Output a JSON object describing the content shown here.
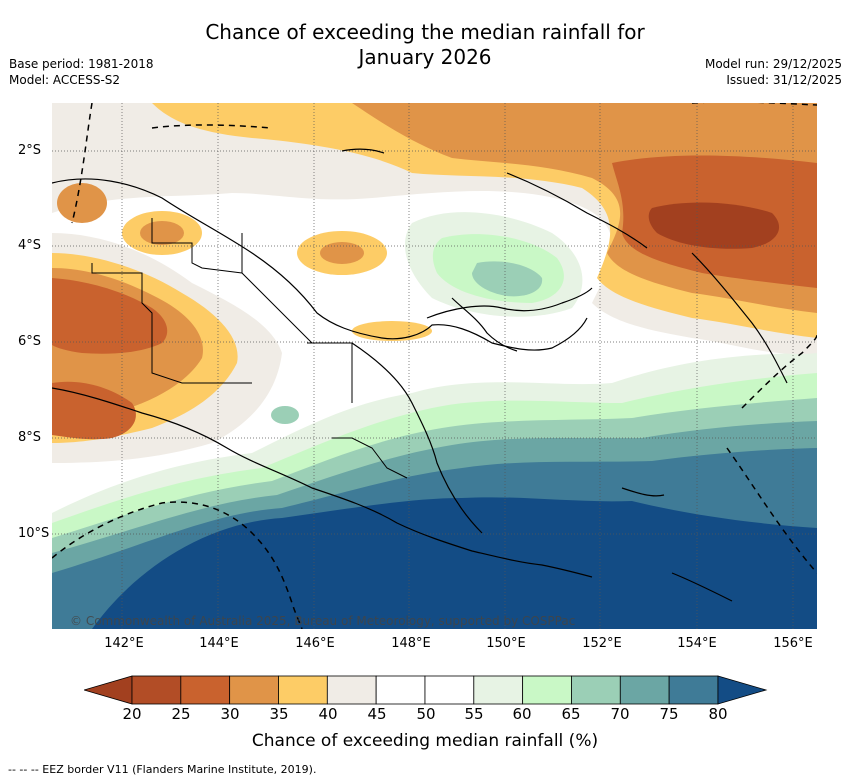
{
  "header": {
    "title_line1": "Chance of exceeding the median rainfall for",
    "title_line2": "January 2026",
    "base_period": "Base period: 1981-2018",
    "model": "Model: ACCESS-S2",
    "model_run": "Model run: 29/12/2025",
    "issued": "Issued: 31/12/2025"
  },
  "map": {
    "lat_labels": [
      "2°S",
      "4°S",
      "6°S",
      "8°S",
      "10°S"
    ],
    "lon_labels": [
      "142°E",
      "144°E",
      "146°E",
      "148°E",
      "150°E",
      "152°E",
      "154°E",
      "156°E"
    ],
    "copyright": "© Commonwealth of Australia 2025, Bureau of Meteorology, supported by COSPPac"
  },
  "colorbar": {
    "ticks": [
      "20",
      "25",
      "30",
      "35",
      "40",
      "45",
      "50",
      "55",
      "60",
      "65",
      "70",
      "75",
      "80"
    ],
    "colors": [
      "#a2401f",
      "#b24d26",
      "#c9622e",
      "#e09448",
      "#fdcc66",
      "#f0ece6",
      "#ffffff",
      "#ffffff",
      "#e7f3e4",
      "#c9f8c6",
      "#9bcfb6",
      "#6ba6a4",
      "#3f7b97",
      "#134c85"
    ],
    "label": "Chance of exceeding median rainfall (%)"
  },
  "footnote": "--  --  -- EEZ border V11 (Flanders Marine Institute, 2019)."
}
